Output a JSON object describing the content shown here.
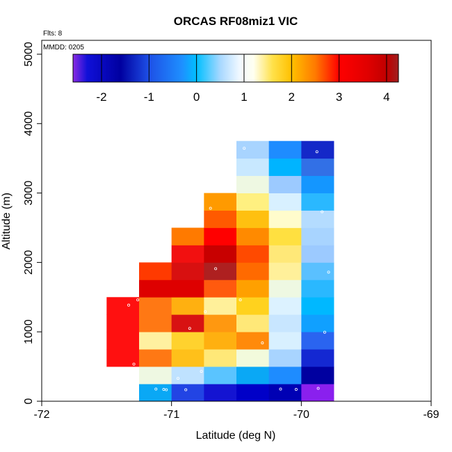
{
  "chart_data": {
    "type": "heatmap",
    "title": "ORCAS RF08miz1 VIC",
    "xlabel": "Latitude (deg N)",
    "ylabel": "Altitude (m)",
    "xlim": [
      -72,
      -69
    ],
    "ylim": [
      0,
      5200
    ],
    "x_ticks": [
      "-72",
      "-71",
      "-70",
      "-69"
    ],
    "x_tick_values": [
      -72,
      -71,
      -70,
      -69
    ],
    "y_ticks": [
      "0",
      "1000",
      "2000",
      "3000",
      "4000",
      "5000"
    ],
    "y_tick_values": [
      0,
      1000,
      2000,
      3000,
      4000,
      5000
    ],
    "annotation_flights": "Flts: 8",
    "annotation_date": "MMDD: 0205",
    "colorbar": {
      "range": [
        -2.6,
        4.25
      ],
      "ticks": [
        "-2",
        "-1",
        "0",
        "1",
        "2",
        "3",
        "4"
      ],
      "tick_values": [
        -2,
        -1,
        0,
        1,
        2,
        3,
        4
      ],
      "stops": [
        {
          "v": -2.6,
          "c": "#8a2be2"
        },
        {
          "v": -2.3,
          "c": "#1010d8"
        },
        {
          "v": -1.6,
          "c": "#0000a0"
        },
        {
          "v": -1.0,
          "c": "#1e50e6"
        },
        {
          "v": -0.3,
          "c": "#1e90ff"
        },
        {
          "v": 0.0,
          "c": "#00bfff"
        },
        {
          "v": 0.5,
          "c": "#a8d8ff"
        },
        {
          "v": 0.9,
          "c": "#f0f8ff"
        },
        {
          "v": 1.2,
          "c": "#fffff0"
        },
        {
          "v": 1.6,
          "c": "#ffe14a"
        },
        {
          "v": 2.0,
          "c": "#ffc000"
        },
        {
          "v": 2.5,
          "c": "#ff7a00"
        },
        {
          "v": 3.0,
          "c": "#ff0000"
        },
        {
          "v": 3.6,
          "c": "#e00000"
        },
        {
          "v": 4.0,
          "c": "#c00000"
        },
        {
          "v": 4.25,
          "c": "#a02020"
        }
      ]
    },
    "cell_width_deg": 0.25,
    "cell_height_m": 250,
    "cells": [
      {
        "lat": -71.375,
        "alt": 625,
        "color": "#ff1010"
      },
      {
        "lat": -71.375,
        "alt": 875,
        "color": "#ff1010"
      },
      {
        "lat": -71.375,
        "alt": 1125,
        "color": "#ff1010"
      },
      {
        "lat": -71.375,
        "alt": 1375,
        "color": "#ff1010"
      },
      {
        "lat": -71.125,
        "alt": 125,
        "color": "#0aa8f5"
      },
      {
        "lat": -71.125,
        "alt": 375,
        "color": "#eef8e2"
      },
      {
        "lat": -71.125,
        "alt": 625,
        "color": "#ff7814"
      },
      {
        "lat": -71.125,
        "alt": 875,
        "color": "#fff0a0"
      },
      {
        "lat": -71.125,
        "alt": 1125,
        "color": "#ff7814"
      },
      {
        "lat": -71.125,
        "alt": 1375,
        "color": "#ff7814"
      },
      {
        "lat": -71.125,
        "alt": 1625,
        "color": "#de0000"
      },
      {
        "lat": -71.125,
        "alt": 1875,
        "color": "#ff3a00"
      },
      {
        "lat": -70.875,
        "alt": 125,
        "color": "#2244e4"
      },
      {
        "lat": -70.875,
        "alt": 375,
        "color": "#bfe2ff"
      },
      {
        "lat": -70.875,
        "alt": 625,
        "color": "#ffc01a"
      },
      {
        "lat": -70.875,
        "alt": 875,
        "color": "#ffd22e"
      },
      {
        "lat": -70.875,
        "alt": 1125,
        "color": "#d81212"
      },
      {
        "lat": -70.875,
        "alt": 1375,
        "color": "#ffb010"
      },
      {
        "lat": -70.875,
        "alt": 1625,
        "color": "#de0000"
      },
      {
        "lat": -70.875,
        "alt": 1875,
        "color": "#d81010"
      },
      {
        "lat": -70.875,
        "alt": 2125,
        "color": "#f21010"
      },
      {
        "lat": -70.875,
        "alt": 2375,
        "color": "#ff7a00"
      },
      {
        "lat": -70.625,
        "alt": 125,
        "color": "#1414d2"
      },
      {
        "lat": -70.625,
        "alt": 375,
        "color": "#5ac4ff"
      },
      {
        "lat": -70.625,
        "alt": 625,
        "color": "#ffe878"
      },
      {
        "lat": -70.625,
        "alt": 875,
        "color": "#ffb010"
      },
      {
        "lat": -70.625,
        "alt": 1125,
        "color": "#ff9810"
      },
      {
        "lat": -70.625,
        "alt": 1375,
        "color": "#fff09a"
      },
      {
        "lat": -70.625,
        "alt": 1625,
        "color": "#ff5a0e"
      },
      {
        "lat": -70.625,
        "alt": 1875,
        "color": "#ae2020"
      },
      {
        "lat": -70.625,
        "alt": 2125,
        "color": "#c80000"
      },
      {
        "lat": -70.625,
        "alt": 2375,
        "color": "#ff0000"
      },
      {
        "lat": -70.625,
        "alt": 2625,
        "color": "#ff5a00"
      },
      {
        "lat": -70.625,
        "alt": 2875,
        "color": "#ff9a00"
      },
      {
        "lat": -70.375,
        "alt": 125,
        "color": "#0000c8"
      },
      {
        "lat": -70.375,
        "alt": 375,
        "color": "#0aa8f5"
      },
      {
        "lat": -70.375,
        "alt": 625,
        "color": "#f2fadc"
      },
      {
        "lat": -70.375,
        "alt": 875,
        "color": "#ff8a0a"
      },
      {
        "lat": -70.375,
        "alt": 1125,
        "color": "#ffe878"
      },
      {
        "lat": -70.375,
        "alt": 1375,
        "color": "#ffd21e"
      },
      {
        "lat": -70.375,
        "alt": 1625,
        "color": "#ffa000"
      },
      {
        "lat": -70.375,
        "alt": 1875,
        "color": "#ff6a00"
      },
      {
        "lat": -70.375,
        "alt": 2125,
        "color": "#ff4a00"
      },
      {
        "lat": -70.375,
        "alt": 2375,
        "color": "#ff8a00"
      },
      {
        "lat": -70.375,
        "alt": 2625,
        "color": "#ffc010"
      },
      {
        "lat": -70.375,
        "alt": 2875,
        "color": "#fff080"
      },
      {
        "lat": -70.375,
        "alt": 3125,
        "color": "#eef8e2"
      },
      {
        "lat": -70.375,
        "alt": 3375,
        "color": "#c8e8ff"
      },
      {
        "lat": -70.375,
        "alt": 3625,
        "color": "#a8d4ff"
      },
      {
        "lat": -70.125,
        "alt": 125,
        "color": "#0000b4"
      },
      {
        "lat": -70.125,
        "alt": 375,
        "color": "#1e8cff"
      },
      {
        "lat": -70.125,
        "alt": 625,
        "color": "#a8d4ff"
      },
      {
        "lat": -70.125,
        "alt": 875,
        "color": "#d8f0ff"
      },
      {
        "lat": -70.125,
        "alt": 1125,
        "color": "#c8e6ff"
      },
      {
        "lat": -70.125,
        "alt": 1375,
        "color": "#dcf2ff"
      },
      {
        "lat": -70.125,
        "alt": 1625,
        "color": "#eef8e2"
      },
      {
        "lat": -70.125,
        "alt": 1875,
        "color": "#fff09a"
      },
      {
        "lat": -70.125,
        "alt": 2125,
        "color": "#ffe878"
      },
      {
        "lat": -70.125,
        "alt": 2375,
        "color": "#ffe040"
      },
      {
        "lat": -70.125,
        "alt": 2625,
        "color": "#fffccc"
      },
      {
        "lat": -70.125,
        "alt": 2875,
        "color": "#d8f0ff"
      },
      {
        "lat": -70.125,
        "alt": 3125,
        "color": "#9ccaff"
      },
      {
        "lat": -70.125,
        "alt": 3375,
        "color": "#00b4ff"
      },
      {
        "lat": -70.125,
        "alt": 3625,
        "color": "#1e8cff"
      },
      {
        "lat": -69.875,
        "alt": 125,
        "color": "#8a20ee"
      },
      {
        "lat": -69.875,
        "alt": 375,
        "color": "#0000a0"
      },
      {
        "lat": -69.875,
        "alt": 625,
        "color": "#1428d2"
      },
      {
        "lat": -69.875,
        "alt": 875,
        "color": "#2a64f0"
      },
      {
        "lat": -69.875,
        "alt": 1125,
        "color": "#10a0ff"
      },
      {
        "lat": -69.875,
        "alt": 1375,
        "color": "#00b8ff"
      },
      {
        "lat": -69.875,
        "alt": 1625,
        "color": "#2ab8ff"
      },
      {
        "lat": -69.875,
        "alt": 1875,
        "color": "#5ac0ff"
      },
      {
        "lat": -69.875,
        "alt": 2125,
        "color": "#9ccaff"
      },
      {
        "lat": -69.875,
        "alt": 2375,
        "color": "#a8d4ff"
      },
      {
        "lat": -69.875,
        "alt": 2625,
        "color": "#b4dcff"
      },
      {
        "lat": -69.875,
        "alt": 2875,
        "color": "#2ab8ff"
      },
      {
        "lat": -69.875,
        "alt": 3125,
        "color": "#1496ff"
      },
      {
        "lat": -69.875,
        "alt": 3375,
        "color": "#3270e6"
      },
      {
        "lat": -69.875,
        "alt": 3625,
        "color": "#1428c8"
      }
    ],
    "points": [
      {
        "lat": -71.26,
        "alt": 1460
      },
      {
        "lat": -71.33,
        "alt": 1385
      },
      {
        "lat": -71.29,
        "alt": 535
      },
      {
        "lat": -71.12,
        "alt": 175
      },
      {
        "lat": -71.06,
        "alt": 170
      },
      {
        "lat": -71.04,
        "alt": 165
      },
      {
        "lat": -70.95,
        "alt": 330
      },
      {
        "lat": -70.89,
        "alt": 165
      },
      {
        "lat": -70.77,
        "alt": 430
      },
      {
        "lat": -70.86,
        "alt": 1050
      },
      {
        "lat": -70.74,
        "alt": 1290
      },
      {
        "lat": -70.7,
        "alt": 2780
      },
      {
        "lat": -70.66,
        "alt": 1910
      },
      {
        "lat": -70.47,
        "alt": 1460
      },
      {
        "lat": -70.44,
        "alt": 3645
      },
      {
        "lat": -70.3,
        "alt": 840
      },
      {
        "lat": -70.16,
        "alt": 175
      },
      {
        "lat": -70.04,
        "alt": 170
      },
      {
        "lat": -69.88,
        "alt": 3595
      },
      {
        "lat": -69.84,
        "alt": 2730
      },
      {
        "lat": -69.79,
        "alt": 1860
      },
      {
        "lat": -69.82,
        "alt": 995
      },
      {
        "lat": -69.87,
        "alt": 185
      }
    ]
  }
}
